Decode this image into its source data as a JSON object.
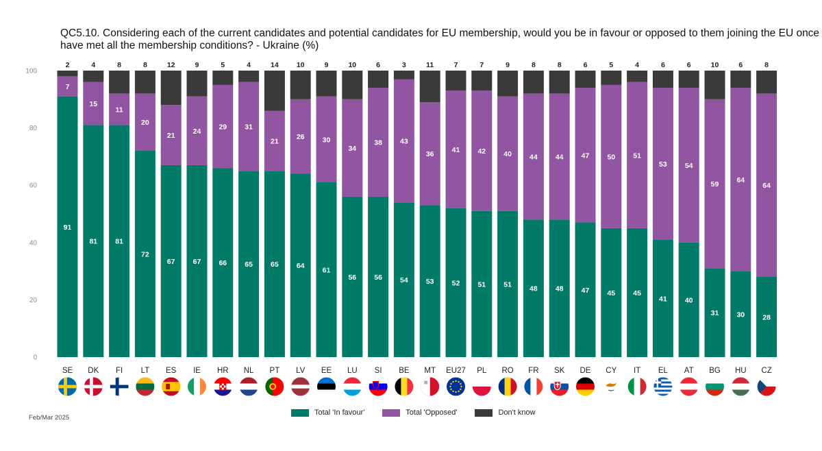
{
  "title_lines": [
    "QC5.10. Considering each of the current candidates and potential candidates for EU membership, would you be in favour or opposed to them joining the EU once they",
    "have met all the membership conditions? - Ukraine (%)"
  ],
  "source_note": "Feb/Mar 2025",
  "colors": {
    "favour": "#017a67",
    "opposed": "#9155a2",
    "dontknow": "#3a3a3a",
    "axis_text": "#8a8a8a"
  },
  "legend": {
    "favour": "Total 'In favour'",
    "opposed": "Total 'Opposed'",
    "dontknow": "Don't know"
  },
  "chart_data": {
    "type": "bar",
    "stacked": true,
    "ylim": [
      0,
      100
    ],
    "yticks": [
      0,
      20,
      40,
      60,
      80,
      100
    ],
    "categories": [
      "SE",
      "DK",
      "FI",
      "LT",
      "ES",
      "IE",
      "HR",
      "NL",
      "PT",
      "LV",
      "EE",
      "LU",
      "SI",
      "BE",
      "MT",
      "EU27",
      "PL",
      "RO",
      "FR",
      "SK",
      "DE",
      "CY",
      "IT",
      "EL",
      "AT",
      "BG",
      "HU",
      "CZ"
    ],
    "flags": [
      "flag-sweden-icon",
      "flag-denmark-icon",
      "flag-finland-icon",
      "flag-lithuania-icon",
      "flag-spain-icon",
      "flag-ireland-icon",
      "flag-croatia-icon",
      "flag-netherlands-icon",
      "flag-portugal-icon",
      "flag-latvia-icon",
      "flag-estonia-icon",
      "flag-luxembourg-icon",
      "flag-slovenia-icon",
      "flag-belgium-icon",
      "flag-malta-icon",
      "flag-eu-icon",
      "flag-poland-icon",
      "flag-romania-icon",
      "flag-france-icon",
      "flag-slovakia-icon",
      "flag-germany-icon",
      "flag-cyprus-icon",
      "flag-italy-icon",
      "flag-greece-icon",
      "flag-austria-icon",
      "flag-bulgaria-icon",
      "flag-hungary-icon",
      "flag-czechia-icon"
    ],
    "series": [
      {
        "name": "Total 'In favour'",
        "key": "favour",
        "values": [
          91,
          81,
          81,
          72,
          67,
          67,
          66,
          65,
          65,
          64,
          61,
          56,
          56,
          54,
          53,
          52,
          51,
          51,
          48,
          48,
          47,
          45,
          45,
          41,
          40,
          31,
          30,
          28
        ]
      },
      {
        "name": "Total 'Opposed'",
        "key": "opposed",
        "values": [
          7,
          15,
          11,
          20,
          21,
          24,
          29,
          31,
          21,
          26,
          30,
          34,
          38,
          43,
          36,
          41,
          42,
          40,
          44,
          44,
          47,
          50,
          51,
          53,
          54,
          59,
          64,
          64
        ]
      },
      {
        "name": "Don't know",
        "key": "dontknow",
        "values": [
          2,
          4,
          8,
          8,
          12,
          9,
          5,
          4,
          14,
          10,
          9,
          10,
          6,
          3,
          11,
          7,
          7,
          9,
          8,
          8,
          6,
          5,
          4,
          6,
          6,
          10,
          6,
          8
        ]
      }
    ]
  }
}
